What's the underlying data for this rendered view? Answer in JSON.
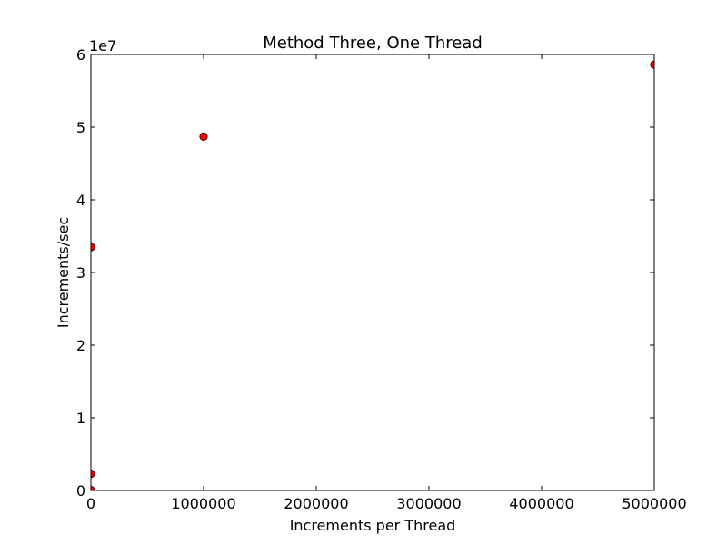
{
  "chart_data": {
    "type": "scatter",
    "title": "Method Three, One Thread",
    "xlabel": "Increments per Thread",
    "ylabel": "Increments/sec",
    "xlim": [
      0,
      5000000
    ],
    "ylim": [
      0,
      60000000
    ],
    "x_ticks": [
      0,
      1000000,
      2000000,
      3000000,
      4000000,
      5000000
    ],
    "x_tick_labels": [
      "0",
      "1000000",
      "2000000",
      "3000000",
      "4000000",
      "5000000"
    ],
    "y_ticks": [
      0,
      10000000,
      20000000,
      30000000,
      40000000,
      50000000,
      60000000
    ],
    "y_tick_labels": [
      "0",
      "1",
      "2",
      "3",
      "4",
      "5",
      "6"
    ],
    "y_offset_label": "1e7",
    "grid": false,
    "marker_color": "#ff0000",
    "series": [
      {
        "x": [
          1,
          10,
          1000,
          1000000,
          5000000
        ],
        "y": [
          50000,
          2300000,
          33500000,
          48700000,
          58600000
        ]
      }
    ]
  }
}
